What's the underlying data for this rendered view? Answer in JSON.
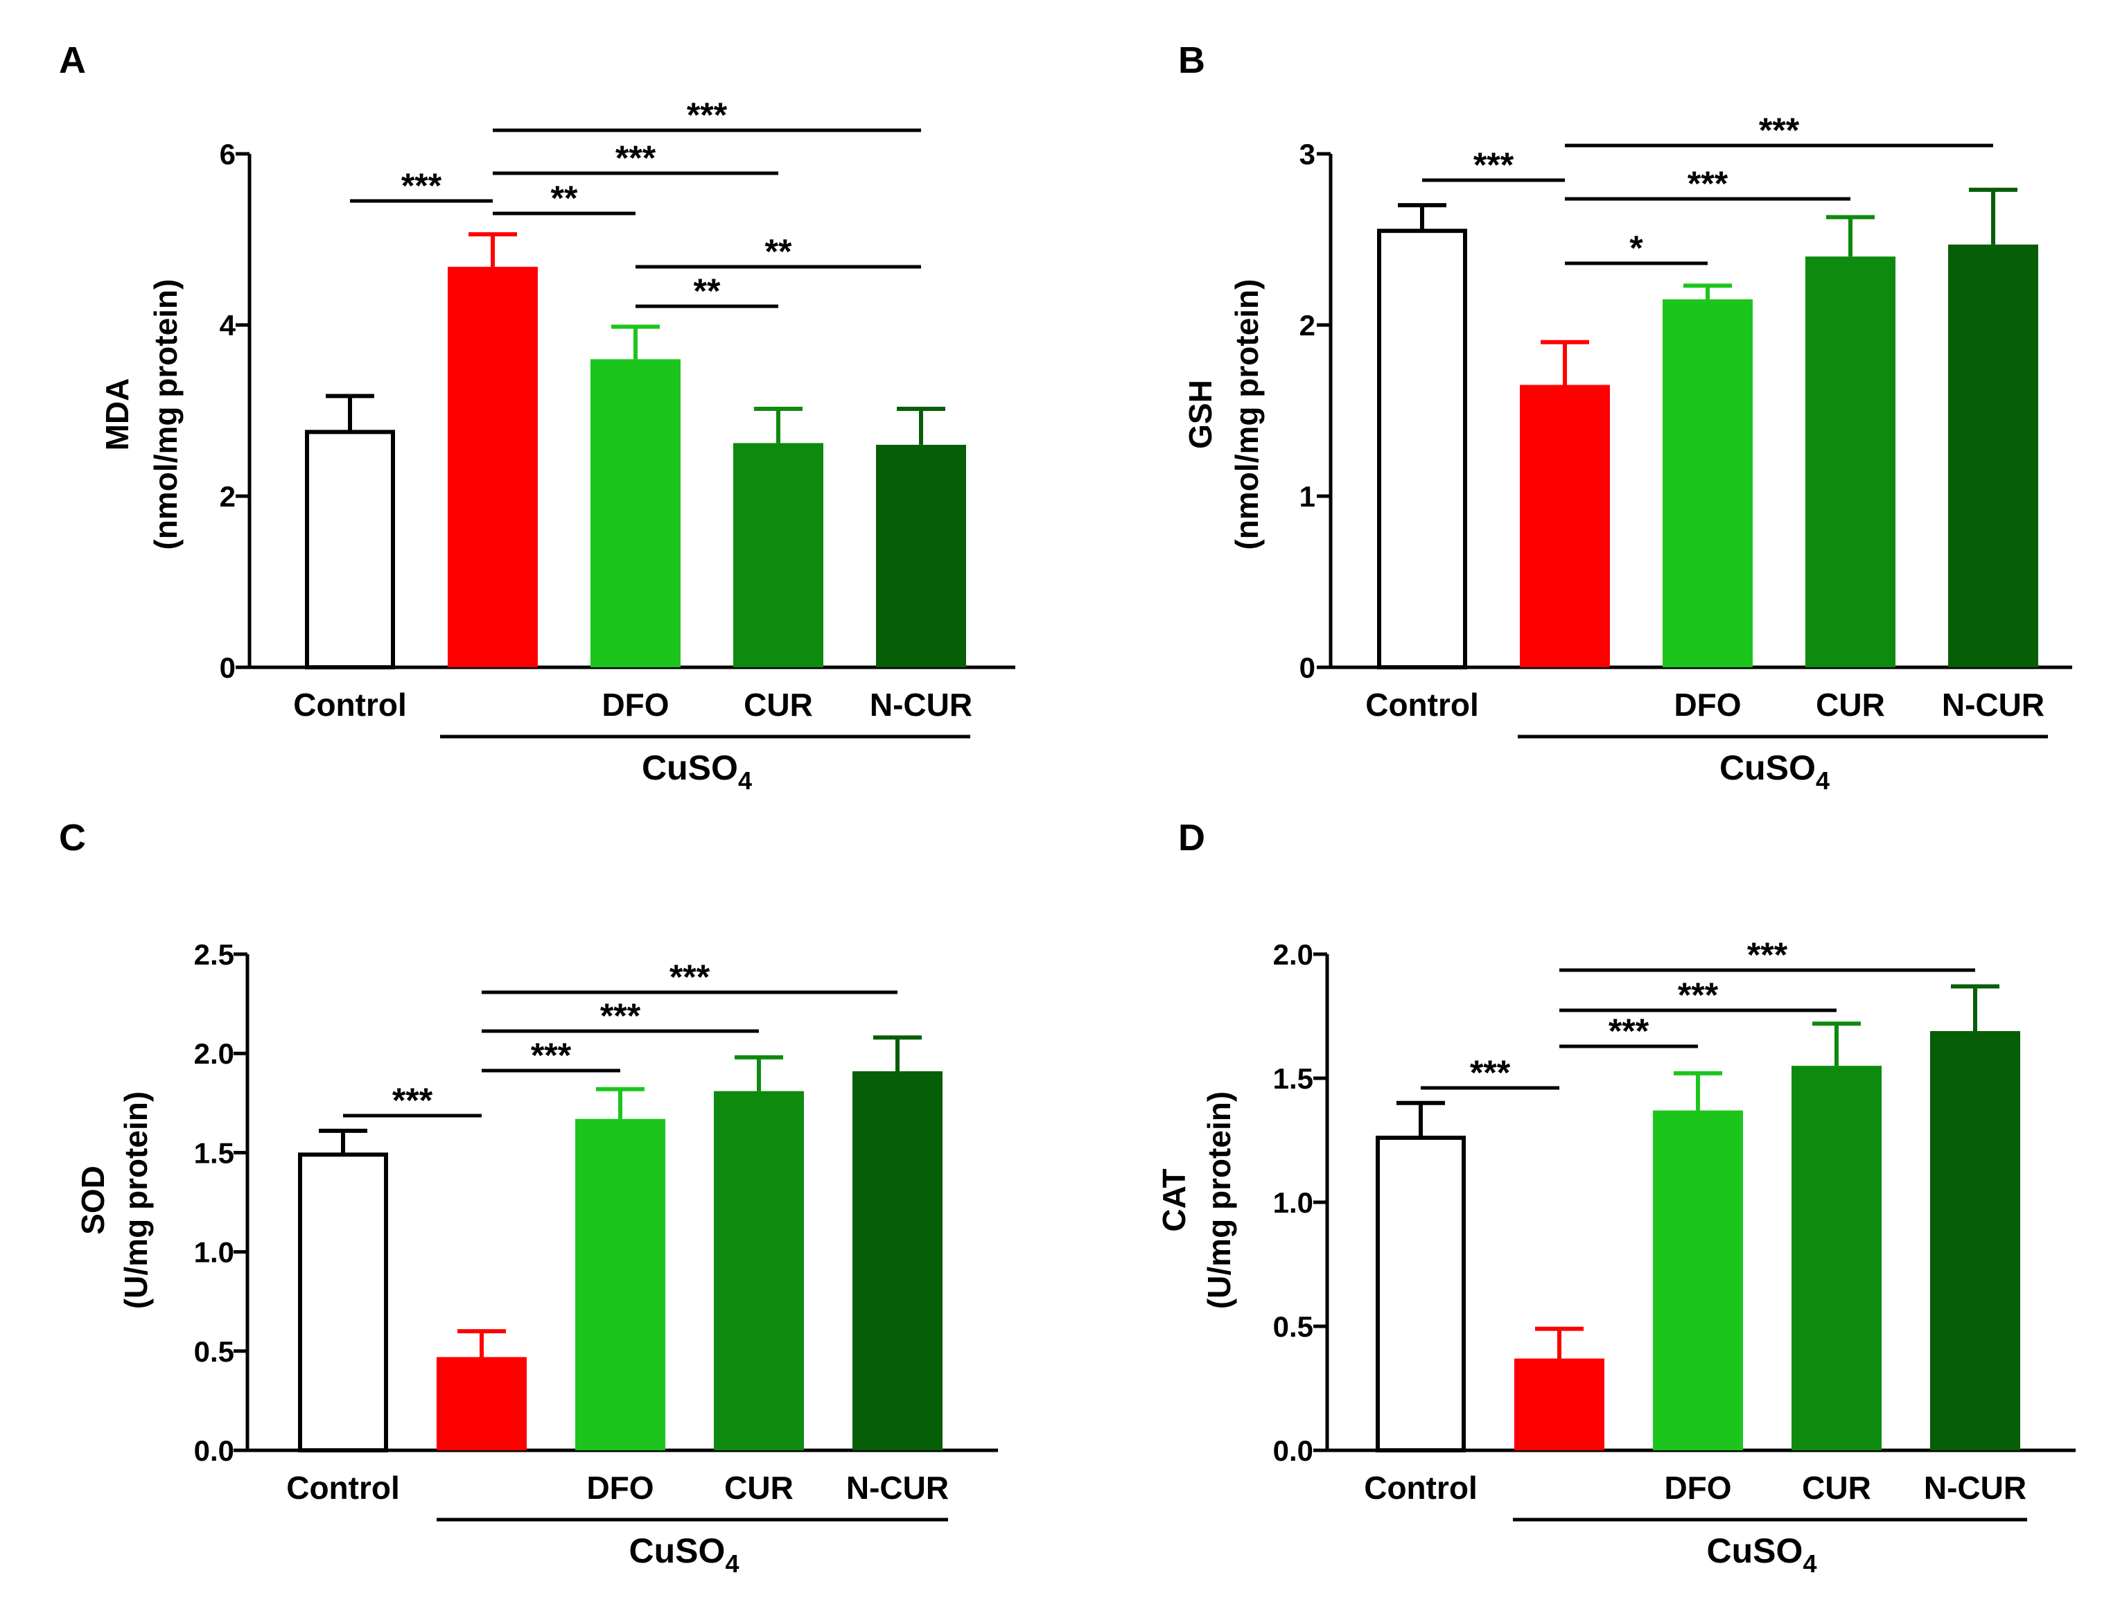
{
  "figure": {
    "panels": [
      {
        "label": "A",
        "xtick_labels": [
          "Control",
          "",
          "DFO",
          "CUR",
          "N-CUR"
        ],
        "group_label": {
          "base": "CuSO",
          "sub": "4"
        },
        "group_span": [
          1,
          4
        ],
        "comparisons": [
          {
            "from": 0,
            "to": 1,
            "text": "***"
          },
          {
            "from": 1,
            "to": 2,
            "text": "**"
          },
          {
            "from": 1,
            "to": 3,
            "text": "***"
          },
          {
            "from": 1,
            "to": 4,
            "text": "***"
          },
          {
            "from": 2,
            "to": 3,
            "text": "**"
          },
          {
            "from": 2,
            "to": 4,
            "text": "**"
          }
        ]
      },
      {
        "label": "B",
        "xtick_labels": [
          "Control",
          "",
          "DFO",
          "CUR",
          "N-CUR"
        ],
        "group_label": {
          "base": "CuSO",
          "sub": "4"
        },
        "group_span": [
          1,
          4
        ],
        "comparisons": [
          {
            "from": 0,
            "to": 1,
            "text": "***"
          },
          {
            "from": 1,
            "to": 2,
            "text": "*"
          },
          {
            "from": 1,
            "to": 3,
            "text": "***"
          },
          {
            "from": 1,
            "to": 4,
            "text": "***"
          }
        ]
      },
      {
        "label": "C",
        "xtick_labels": [
          "Control",
          "",
          "DFO",
          "CUR",
          "N-CUR"
        ],
        "group_label": {
          "base": "CuSO",
          "sub": "4"
        },
        "group_span": [
          1,
          4
        ],
        "comparisons": [
          {
            "from": 0,
            "to": 1,
            "text": "***"
          },
          {
            "from": 1,
            "to": 2,
            "text": "***"
          },
          {
            "from": 1,
            "to": 3,
            "text": "***"
          },
          {
            "from": 1,
            "to": 4,
            "text": "***"
          }
        ]
      },
      {
        "label": "D",
        "xtick_labels": [
          "Control",
          "",
          "DFO",
          "CUR",
          "N-CUR"
        ],
        "group_label": {
          "base": "CuSO",
          "sub": "4"
        },
        "group_span": [
          1,
          4
        ],
        "comparisons": [
          {
            "from": 0,
            "to": 1,
            "text": "***"
          },
          {
            "from": 1,
            "to": 2,
            "text": "***"
          },
          {
            "from": 1,
            "to": 3,
            "text": "***"
          },
          {
            "from": 1,
            "to": 4,
            "text": "***"
          }
        ]
      }
    ]
  },
  "chart_data": [
    {
      "type": "bar",
      "title": "A",
      "categories": [
        "Control",
        "CuSO4",
        "CuSO4 + DFO",
        "CuSO4 + CUR",
        "CuSO4 + N-CUR"
      ],
      "values": [
        2.75,
        4.68,
        3.6,
        2.62,
        2.6
      ],
      "errors": [
        0.42,
        0.38,
        0.38,
        0.4,
        0.42
      ],
      "colors": [
        "#ffffff",
        "#ff0000",
        "#1cc51c",
        "#0e8a0e",
        "#065e06"
      ],
      "ylabel": "MDA",
      "ylabel_unit": "(nmol/mg protein)",
      "ylim": [
        0,
        6
      ],
      "yticks": [
        0,
        2,
        4,
        6
      ],
      "ytick_labels": [
        "0",
        "2",
        "4",
        "6"
      ]
    },
    {
      "type": "bar",
      "title": "B",
      "categories": [
        "Control",
        "CuSO4",
        "CuSO4 + DFO",
        "CuSO4 + CUR",
        "CuSO4 + N-CUR"
      ],
      "values": [
        2.55,
        1.65,
        2.15,
        2.4,
        2.47
      ],
      "errors": [
        0.15,
        0.25,
        0.08,
        0.23,
        0.32
      ],
      "colors": [
        "#ffffff",
        "#ff0000",
        "#1cc51c",
        "#0e8a0e",
        "#065e06"
      ],
      "ylabel": "GSH",
      "ylabel_unit": "(nmol/mg protein)",
      "ylim": [
        0,
        3
      ],
      "yticks": [
        0,
        1,
        2,
        3
      ],
      "ytick_labels": [
        "0",
        "1",
        "2",
        "3"
      ]
    },
    {
      "type": "bar",
      "title": "C",
      "categories": [
        "Control",
        "CuSO4",
        "CuSO4 + DFO",
        "CuSO4 + CUR",
        "CuSO4 + N-CUR"
      ],
      "values": [
        1.49,
        0.47,
        1.67,
        1.81,
        1.91
      ],
      "errors": [
        0.12,
        0.13,
        0.15,
        0.17,
        0.17
      ],
      "colors": [
        "#ffffff",
        "#ff0000",
        "#1cc51c",
        "#0e8a0e",
        "#065e06"
      ],
      "ylabel": "SOD",
      "ylabel_unit": "(U/mg protein)",
      "ylim": [
        0,
        2.5
      ],
      "yticks": [
        0,
        0.5,
        1.0,
        1.5,
        2.0,
        2.5
      ],
      "ytick_labels": [
        "0.0",
        "0.5",
        "1.0",
        "1.5",
        "2.0",
        "2.5"
      ]
    },
    {
      "type": "bar",
      "title": "D",
      "categories": [
        "Control",
        "CuSO4",
        "CuSO4 + DFO",
        "CuSO4 + CUR",
        "CuSO4 + N-CUR"
      ],
      "values": [
        1.26,
        0.37,
        1.37,
        1.55,
        1.69
      ],
      "errors": [
        0.14,
        0.12,
        0.15,
        0.17,
        0.18
      ],
      "colors": [
        "#ffffff",
        "#ff0000",
        "#1cc51c",
        "#0e8a0e",
        "#065e06"
      ],
      "ylabel": "CAT",
      "ylabel_unit": "(U/mg protein)",
      "ylim": [
        0,
        2.0
      ],
      "yticks": [
        0,
        0.5,
        1.0,
        1.5,
        2.0
      ],
      "ytick_labels": [
        "0.0",
        "0.5",
        "1.0",
        "1.5",
        "2.0"
      ]
    }
  ]
}
